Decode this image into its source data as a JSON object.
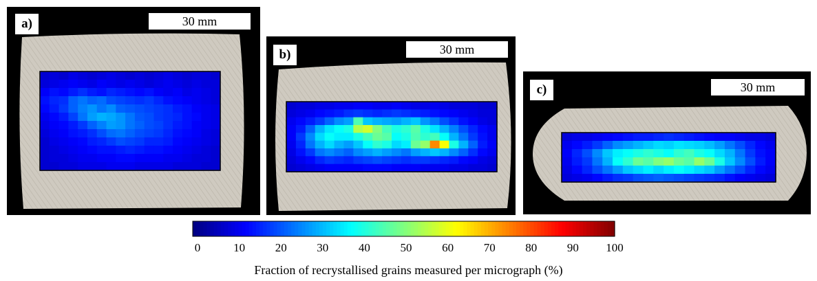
{
  "chart_data": {
    "type": "heatmap",
    "colormap": "jet",
    "colorbar": {
      "range": [
        0,
        100
      ],
      "ticks": [
        "0",
        "10",
        "20",
        "30",
        "40",
        "50",
        "60",
        "70",
        "80",
        "90",
        "100"
      ],
      "label": "Fraction of recrystallised grains measured per micrograph (%)"
    },
    "panels": [
      {
        "label": "a)",
        "scale_bar": "30 mm",
        "rows": 12,
        "cols": 19,
        "values": [
          [
            8,
            9,
            8,
            10,
            9,
            8,
            9,
            10,
            9,
            8,
            9,
            8,
            9,
            10,
            9,
            8,
            9,
            9,
            8
          ],
          [
            9,
            10,
            11,
            12,
            11,
            10,
            12,
            11,
            10,
            11,
            10,
            9,
            10,
            11,
            10,
            9,
            10,
            9,
            9
          ],
          [
            12,
            14,
            13,
            15,
            17,
            15,
            14,
            16,
            15,
            14,
            13,
            14,
            12,
            11,
            12,
            10,
            11,
            10,
            9
          ],
          [
            14,
            16,
            17,
            22,
            24,
            22,
            23,
            20,
            19,
            18,
            17,
            18,
            16,
            14,
            13,
            12,
            11,
            10,
            9
          ],
          [
            13,
            15,
            18,
            22,
            25,
            27,
            24,
            26,
            22,
            21,
            20,
            19,
            18,
            17,
            15,
            14,
            12,
            11,
            10
          ],
          [
            11,
            13,
            15,
            19,
            24,
            28,
            30,
            29,
            27,
            24,
            21,
            20,
            18,
            17,
            16,
            14,
            13,
            11,
            10
          ],
          [
            10,
            12,
            13,
            15,
            18,
            22,
            25,
            28,
            27,
            24,
            22,
            20,
            19,
            17,
            15,
            14,
            12,
            11,
            10
          ],
          [
            9,
            11,
            12,
            14,
            15,
            17,
            20,
            23,
            24,
            22,
            20,
            19,
            18,
            16,
            14,
            13,
            12,
            10,
            9
          ],
          [
            8,
            10,
            11,
            12,
            13,
            15,
            16,
            18,
            20,
            19,
            18,
            16,
            16,
            15,
            13,
            12,
            11,
            10,
            9
          ],
          [
            8,
            9,
            10,
            11,
            12,
            13,
            14,
            14,
            15,
            16,
            15,
            14,
            14,
            13,
            12,
            11,
            10,
            9,
            8
          ],
          [
            8,
            9,
            9,
            10,
            11,
            11,
            12,
            12,
            13,
            13,
            12,
            12,
            12,
            11,
            11,
            10,
            9,
            9,
            8
          ],
          [
            8,
            8,
            9,
            9,
            10,
            10,
            10,
            11,
            11,
            11,
            10,
            10,
            10,
            10,
            9,
            9,
            9,
            8,
            8
          ]
        ]
      },
      {
        "label": "b)",
        "scale_bar": "30 mm",
        "rows": 9,
        "cols": 22,
        "values": [
          [
            8,
            9,
            9,
            10,
            10,
            11,
            11,
            12,
            12,
            11,
            11,
            12,
            11,
            10,
            10,
            11,
            10,
            9,
            9,
            9,
            8,
            8
          ],
          [
            9,
            10,
            11,
            13,
            14,
            15,
            17,
            18,
            17,
            16,
            17,
            18,
            17,
            16,
            15,
            14,
            13,
            12,
            11,
            10,
            9,
            9
          ],
          [
            11,
            13,
            15,
            18,
            22,
            26,
            28,
            45,
            32,
            30,
            29,
            28,
            30,
            32,
            27,
            24,
            20,
            17,
            14,
            12,
            10,
            9
          ],
          [
            12,
            15,
            22,
            30,
            35,
            38,
            40,
            55,
            58,
            50,
            44,
            40,
            42,
            46,
            40,
            35,
            30,
            25,
            20,
            16,
            13,
            11
          ],
          [
            12,
            18,
            26,
            34,
            38,
            36,
            36,
            40,
            44,
            48,
            46,
            38,
            40,
            45,
            42,
            44,
            38,
            30,
            24,
            18,
            14,
            11
          ],
          [
            11,
            16,
            24,
            30,
            34,
            30,
            28,
            32,
            38,
            42,
            40,
            34,
            36,
            48,
            52,
            74,
            62,
            40,
            30,
            22,
            15,
            12
          ],
          [
            10,
            14,
            18,
            24,
            26,
            24,
            22,
            26,
            28,
            30,
            28,
            26,
            24,
            28,
            30,
            32,
            30,
            26,
            22,
            17,
            13,
            11
          ],
          [
            9,
            11,
            13,
            16,
            18,
            17,
            16,
            18,
            19,
            20,
            19,
            18,
            17,
            18,
            18,
            17,
            16,
            15,
            13,
            12,
            10,
            9
          ],
          [
            8,
            9,
            10,
            11,
            12,
            12,
            12,
            12,
            13,
            13,
            13,
            12,
            12,
            12,
            11,
            11,
            11,
            10,
            10,
            9,
            9,
            8
          ]
        ]
      },
      {
        "label": "c)",
        "scale_bar": "30 mm",
        "rows": 6,
        "cols": 21,
        "values": [
          [
            9,
            10,
            10,
            11,
            12,
            13,
            14,
            15,
            15,
            16,
            17,
            16,
            15,
            14,
            13,
            12,
            12,
            11,
            10,
            10,
            9
          ],
          [
            11,
            13,
            15,
            18,
            22,
            26,
            28,
            30,
            32,
            34,
            33,
            35,
            34,
            33,
            31,
            28,
            24,
            20,
            16,
            13,
            11
          ],
          [
            12,
            16,
            20,
            26,
            32,
            36,
            38,
            40,
            42,
            40,
            38,
            42,
            44,
            40,
            38,
            34,
            30,
            24,
            18,
            14,
            12
          ],
          [
            11,
            15,
            18,
            24,
            30,
            38,
            42,
            48,
            46,
            50,
            52,
            48,
            46,
            52,
            48,
            40,
            32,
            26,
            20,
            15,
            12
          ],
          [
            10,
            13,
            16,
            20,
            24,
            28,
            32,
            34,
            36,
            34,
            36,
            38,
            36,
            34,
            32,
            28,
            24,
            20,
            16,
            13,
            11
          ],
          [
            9,
            10,
            11,
            13,
            15,
            17,
            18,
            20,
            21,
            22,
            21,
            20,
            19,
            18,
            17,
            16,
            14,
            12,
            11,
            10,
            9
          ]
        ]
      }
    ]
  }
}
